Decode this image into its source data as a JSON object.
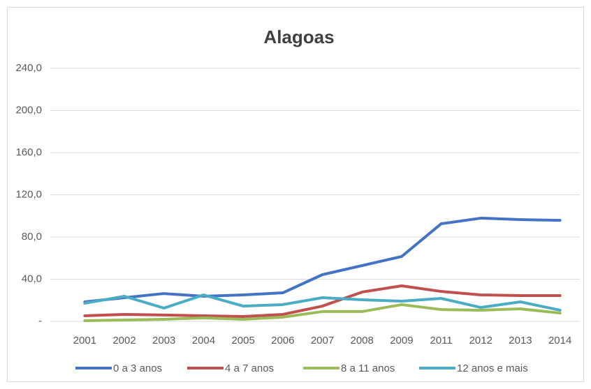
{
  "chart_data": {
    "type": "line",
    "title": "Alagoas",
    "categories": [
      "2001",
      "2002",
      "2003",
      "2004",
      "2005",
      "2006",
      "2007",
      "2008",
      "2009",
      "2011",
      "2012",
      "2013",
      "2014"
    ],
    "series": [
      {
        "name": "0 a 3 anos",
        "color": "#4472c4",
        "values": [
          18.5,
          22.5,
          26.4,
          23.8,
          25.1,
          27.1,
          44.3,
          52.9,
          61.5,
          92.6,
          97.9,
          96.5,
          95.9
        ]
      },
      {
        "name": "4 a 7 anos",
        "color": "#c0504d",
        "values": [
          5.3,
          6.6,
          6.0,
          5.3,
          4.6,
          6.6,
          14.5,
          27.8,
          33.7,
          28.4,
          25.1,
          24.5,
          24.5
        ]
      },
      {
        "name": "8 a 11 anos",
        "color": "#9bbb59",
        "values": [
          0.7,
          1.3,
          2.0,
          3.3,
          2.0,
          4.0,
          9.3,
          9.3,
          15.9,
          11.2,
          10.6,
          11.9,
          7.9
        ]
      },
      {
        "name": "12 anos e mais",
        "color": "#4bacc6",
        "values": [
          17.2,
          23.8,
          12.6,
          25.1,
          14.5,
          15.9,
          22.5,
          20.5,
          19.2,
          21.8,
          13.2,
          18.5,
          10.6
        ]
      }
    ],
    "ylim": [
      0,
      240
    ],
    "yticks": [
      {
        "value": 0,
        "label": "-"
      },
      {
        "value": 40,
        "label": "40,0"
      },
      {
        "value": 80,
        "label": "80,0"
      },
      {
        "value": 120,
        "label": "120,0"
      },
      {
        "value": 160,
        "label": "160,0"
      },
      {
        "value": 200,
        "label": "200,0"
      },
      {
        "value": 240,
        "label": "240,0"
      }
    ],
    "grid": true,
    "legend": "bottom"
  }
}
